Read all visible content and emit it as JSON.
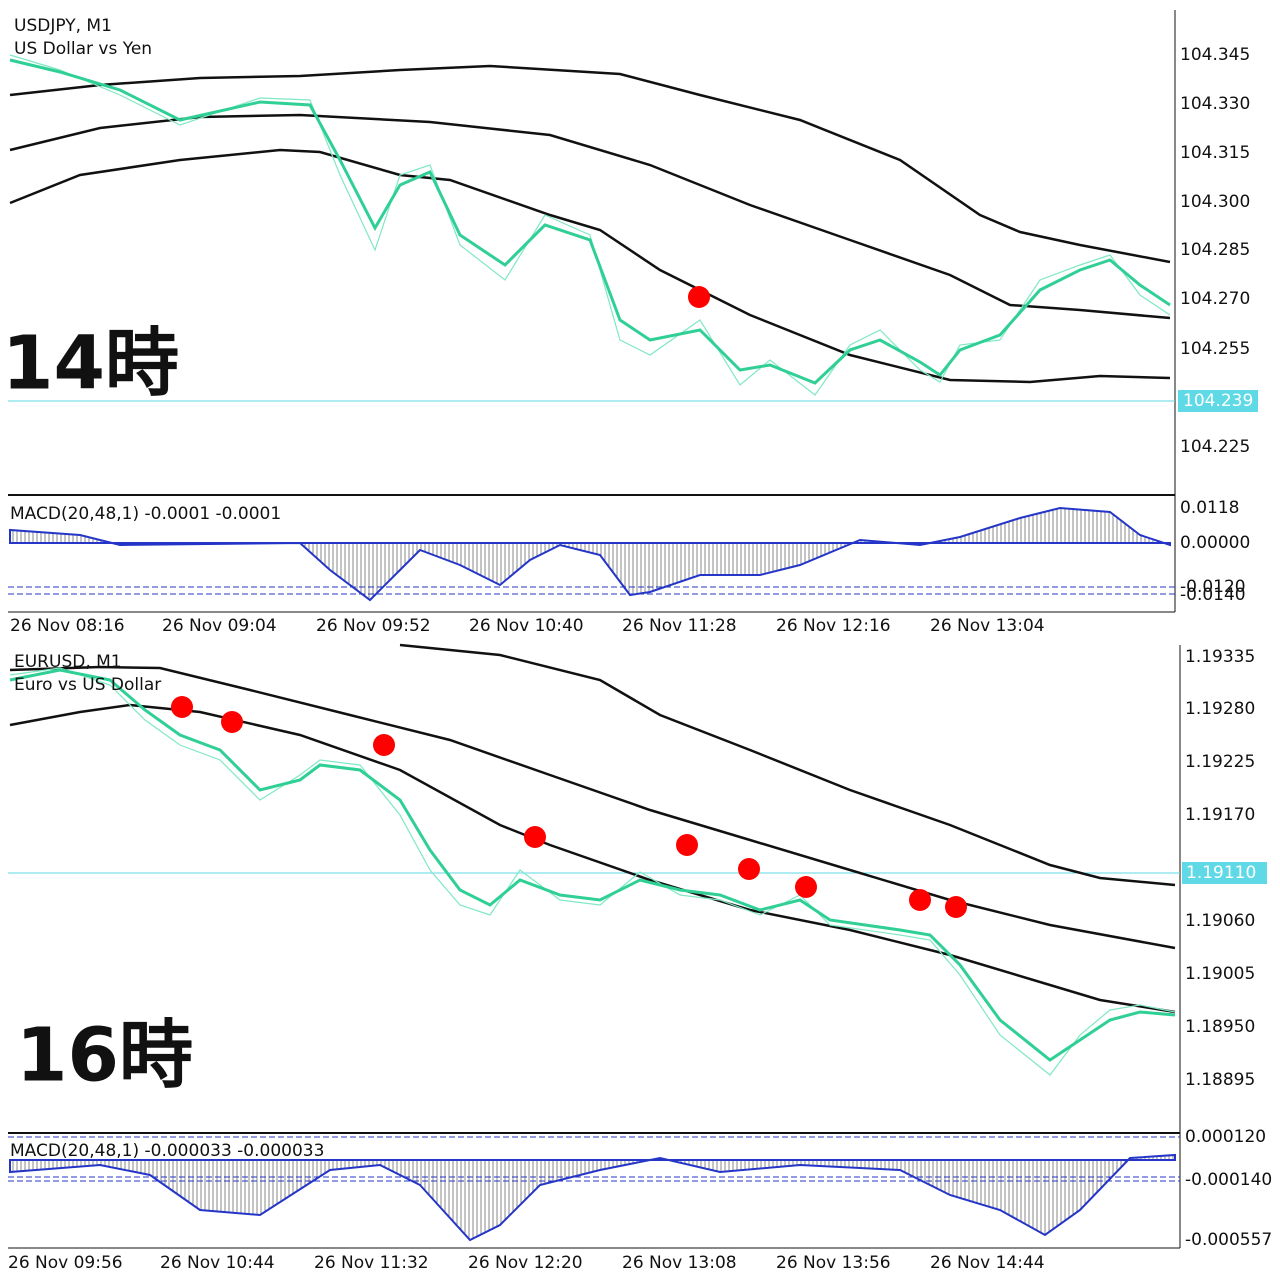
{
  "panels": [
    {
      "symbol": "USDJPY, M1",
      "description": "US Dollar vs Yen",
      "price_axis": [
        "104.345",
        "104.330",
        "104.315",
        "104.300",
        "104.285",
        "104.270",
        "104.255",
        "104.225"
      ],
      "current_price": "104.239",
      "macd": {
        "label": "MACD(20,48,1) -0.0001 -0.0001",
        "axis": [
          "0.0118",
          "0.00000",
          "-0.0120",
          "-0.0140"
        ]
      },
      "time_axis": [
        "26 Nov 08:16",
        "26 Nov 09:04",
        "26 Nov 09:52",
        "26 Nov 10:40",
        "26 Nov 11:28",
        "26 Nov 12:16",
        "26 Nov 13:04"
      ],
      "overlay": "14時"
    },
    {
      "symbol": "EURUSD, M1",
      "description": "Euro vs US Dollar",
      "price_axis": [
        "1.19335",
        "1.19280",
        "1.19225",
        "1.19170",
        "1.19060",
        "1.19005",
        "1.18950",
        "1.18895"
      ],
      "current_price": "1.19110",
      "macd": {
        "label": "MACD(20,48,1) -0.000033 -0.000033",
        "axis": [
          "0.000120",
          "-0.000140",
          "-0.000557"
        ]
      },
      "time_axis": [
        "26 Nov 09:56",
        "26 Nov 10:44",
        "26 Nov 11:32",
        "26 Nov 12:20",
        "26 Nov 13:08",
        "26 Nov 13:56",
        "26 Nov 14:44"
      ],
      "overlay": "16時"
    }
  ]
}
